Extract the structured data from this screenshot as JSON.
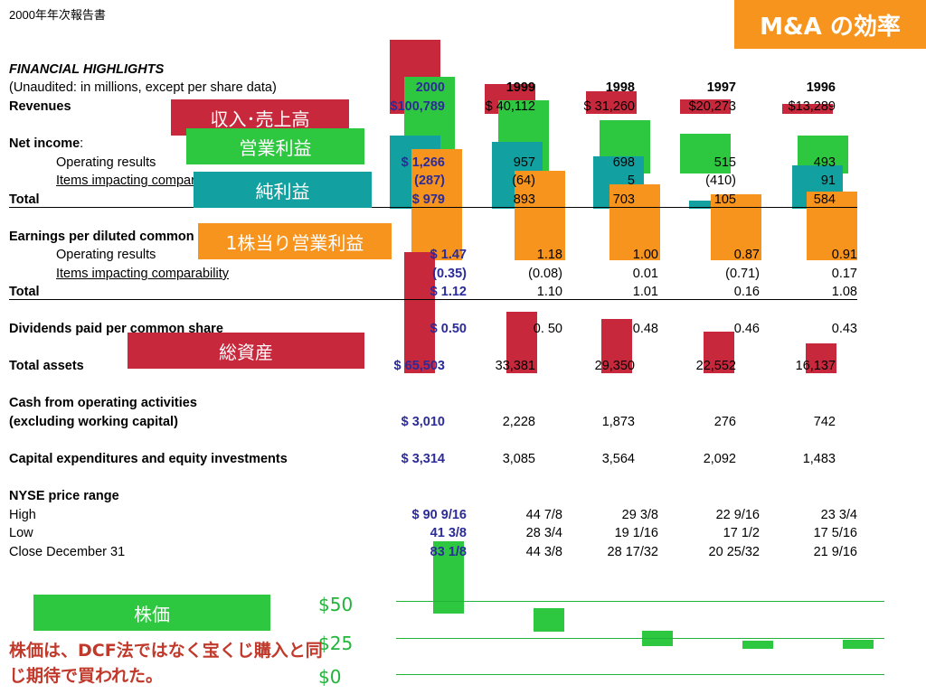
{
  "header": {
    "doc_title": "2000年年次報告書",
    "badge": "M&A の効率"
  },
  "section_title": "FINANCIAL HIGHLIGHTS",
  "subtitle": "(Unaudited: in millions, except per share data)",
  "years": [
    "2000",
    "1999",
    "1998",
    "1997",
    "1996"
  ],
  "colors": {
    "red": "#c8283c",
    "green": "#2ec840",
    "teal": "#13a0a0",
    "orange": "#f7941d",
    "text_blue": "#2b2b9a"
  },
  "rows": {
    "revenues": {
      "label": "Revenues",
      "values": [
        "$100,789",
        "$ 40,112",
        "$ 31,260",
        "$20,273",
        "$13,289"
      ]
    },
    "net_income": {
      "label": "Net income"
    },
    "op_results": {
      "label": "Operating results",
      "values": [
        "$ 1,266",
        "957",
        "698",
        "515",
        "493"
      ]
    },
    "items": {
      "label": "Items impacting comparability",
      "values": [
        "(287)",
        "(64)",
        "5",
        "(410)",
        "91"
      ]
    },
    "total": {
      "label": "Total",
      "values": [
        "$ 979",
        "893",
        "703",
        "105",
        "584"
      ]
    },
    "eps": {
      "label": "Earnings per diluted common share"
    },
    "eps_op": {
      "label": "Operating results",
      "values": [
        "$ 1.47",
        "1.18",
        "1.00",
        "0.87",
        "0.91"
      ]
    },
    "eps_items": {
      "label": "Items impacting comparability",
      "values": [
        "(0.35)",
        "(0.08)",
        "0.01",
        "(0.71)",
        "0.17"
      ]
    },
    "eps_total": {
      "label": "Total",
      "values": [
        "$ 1.12",
        "1.10",
        "1.01",
        "0.16",
        "1.08"
      ]
    },
    "dividends": {
      "label": "Dividends paid per common share",
      "values": [
        "$ 0.50",
        "0. 50",
        "0.48",
        "0.46",
        "0.43"
      ]
    },
    "assets": {
      "label": "Total assets",
      "values": [
        "$ 65,503",
        "33,381",
        "29,350",
        "22,552",
        "16,137"
      ]
    },
    "cash_l1": {
      "label": "Cash from operating activities"
    },
    "cash_l2": {
      "label": "(excluding working capital)",
      "values": [
        "$ 3,010",
        "2,228",
        "1,873",
        "276",
        "742"
      ]
    },
    "capex": {
      "label": "Capital expenditures and equity investments",
      "values": [
        "$ 3,314",
        "3,085",
        "3,564",
        "2,092",
        "1,483"
      ]
    },
    "nyse": {
      "label": "NYSE price range"
    },
    "high": {
      "label": "High",
      "values": [
        "$ 90 9/16",
        "44 7/8",
        "29 3/8",
        "22 9/16",
        "23 3/4"
      ]
    },
    "low": {
      "label": "Low",
      "values": [
        "41 3/8",
        "28 3/4",
        "19 1/16",
        "17 1/2",
        "17 5/16"
      ]
    },
    "close": {
      "label": "Close December 31",
      "values": [
        "83 1/8",
        "44 3/8",
        "28 17/32",
        "20 25/32",
        "21 9/16"
      ]
    }
  },
  "labels": {
    "revenue": "収入･売上高",
    "op_income": "営業利益",
    "net_income": "純利益",
    "eps_op": "1株当り営業利益",
    "assets": "総資産",
    "stock": "株価"
  },
  "note": "株価は、DCF法ではなく宝くじ購入と同じ期待で買われた。",
  "chart_data": [
    {
      "type": "bar",
      "name": "Revenues",
      "categories": [
        "2000",
        "1999",
        "1998",
        "1997",
        "1996"
      ],
      "values": [
        100789,
        40112,
        31260,
        20273,
        13289
      ],
      "color": "#c8283c"
    },
    {
      "type": "bar",
      "name": "Operating results",
      "categories": [
        "2000",
        "1999",
        "1998",
        "1997",
        "1996"
      ],
      "values": [
        1266,
        957,
        698,
        515,
        493
      ],
      "color": "#2ec840"
    },
    {
      "type": "bar",
      "name": "Net income total",
      "categories": [
        "2000",
        "1999",
        "1998",
        "1997",
        "1996"
      ],
      "values": [
        979,
        893,
        703,
        105,
        584
      ],
      "color": "#13a0a0"
    },
    {
      "type": "bar",
      "name": "EPS operating results",
      "categories": [
        "2000",
        "1999",
        "1998",
        "1997",
        "1996"
      ],
      "values": [
        1.47,
        1.18,
        1.0,
        0.87,
        0.91
      ],
      "color": "#f7941d"
    },
    {
      "type": "bar",
      "name": "Total assets",
      "categories": [
        "2000",
        "1999",
        "1998",
        "1997",
        "1996"
      ],
      "values": [
        65503,
        33381,
        29350,
        22552,
        16137
      ],
      "color": "#c8283c"
    },
    {
      "type": "bar",
      "name": "Stock price range (low–high)",
      "categories": [
        "2000",
        "1999",
        "1998",
        "1997",
        "1996"
      ],
      "low": [
        41.375,
        28.75,
        19.0625,
        17.5,
        17.3125
      ],
      "high": [
        90.5625,
        44.875,
        29.375,
        22.5625,
        23.75
      ],
      "yticks": [
        "$50",
        "$25",
        "$0"
      ],
      "ylim": [
        0,
        75
      ],
      "color": "#2ec840"
    }
  ]
}
